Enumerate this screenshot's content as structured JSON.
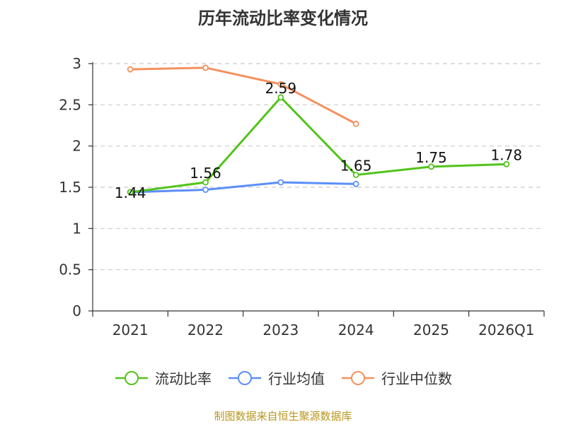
{
  "chart_data": {
    "type": "line",
    "title": "历年流动比率变化情况",
    "categories": [
      "2021",
      "2022",
      "2023",
      "2024",
      "2025",
      "2026Q1"
    ],
    "ylim": [
      0,
      3
    ],
    "yticks": [
      "0",
      "0.5",
      "1",
      "1.5",
      "2",
      "2.5",
      "3"
    ],
    "grid": true,
    "legend_position": "bottom",
    "series": [
      {
        "name": "流动比率",
        "color": "#52c41a",
        "values": [
          1.44,
          1.56,
          2.59,
          1.65,
          1.75,
          1.78
        ],
        "labels": [
          "1.44",
          "1.56",
          "2.59",
          "1.65",
          "1.75",
          "1.78"
        ]
      },
      {
        "name": "行业均值",
        "color": "#5b8ff9",
        "values": [
          1.44,
          1.47,
          1.56,
          1.54,
          null,
          null
        ]
      },
      {
        "name": "行业中位数",
        "color": "#f4915e",
        "values": [
          2.93,
          2.95,
          2.75,
          2.27,
          null,
          null
        ]
      }
    ]
  },
  "source": "制图数据来自恒生聚源数据库"
}
